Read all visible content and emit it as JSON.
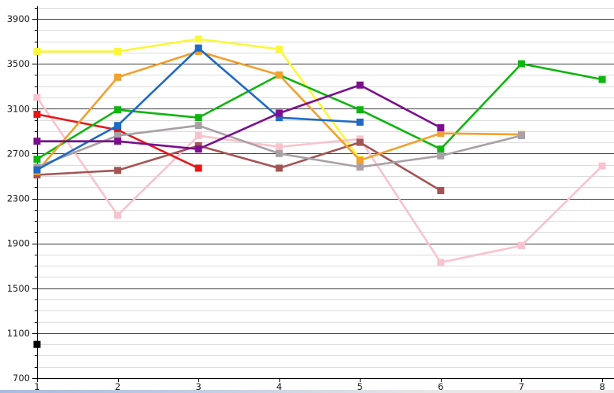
{
  "chart_data": {
    "type": "line",
    "title": "",
    "xlabel": "",
    "ylabel": "",
    "grid": true,
    "legend": "none",
    "xlim": [
      1,
      8
    ],
    "ylim": [
      700,
      4010
    ],
    "y_major_step": 400,
    "y_minor_step": 100,
    "x": [
      1,
      2,
      3,
      4,
      5,
      6,
      7,
      8
    ],
    "x_tick_labels": [
      "1",
      "2",
      "3",
      "4",
      "5",
      "6",
      "7",
      "8"
    ],
    "y_major_ticks": [
      700,
      1100,
      1500,
      1900,
      2300,
      2700,
      3100,
      3500,
      3900
    ],
    "y_tick_labels": [
      "700",
      "1100",
      "1500",
      "1900",
      "2300",
      "2700",
      "3100",
      "3500",
      "3900"
    ],
    "series": [
      {
        "name": "black",
        "color": "#000000",
        "values": [
          1000,
          null,
          null,
          null,
          null,
          null,
          null,
          null
        ]
      },
      {
        "name": "yellow",
        "color": "#fbf73a",
        "values": [
          3610,
          3610,
          3720,
          3630,
          2650,
          null,
          null,
          null
        ]
      },
      {
        "name": "pink",
        "color": "#f8c3ce",
        "values": [
          3200,
          2150,
          2860,
          2760,
          2830,
          1730,
          1880,
          2590
        ]
      },
      {
        "name": "brown",
        "color": "#a45454",
        "values": [
          2510,
          2550,
          2770,
          2570,
          2800,
          2370,
          null,
          null
        ]
      },
      {
        "name": "red",
        "color": "#e61717",
        "values": [
          3050,
          2910,
          2570,
          null,
          null,
          null,
          null,
          null
        ]
      },
      {
        "name": "green",
        "color": "#0fb50f",
        "values": [
          2650,
          3090,
          3020,
          3400,
          3090,
          2740,
          3500,
          3360
        ]
      },
      {
        "name": "orange",
        "color": "#f2a02e",
        "values": [
          2540,
          3380,
          3610,
          3400,
          2640,
          2880,
          2870,
          null
        ]
      },
      {
        "name": "gray",
        "color": "#a9a0a6",
        "values": [
          2580,
          2860,
          2950,
          2700,
          2580,
          2680,
          2860,
          null
        ]
      },
      {
        "name": "blue",
        "color": "#1f6ac4",
        "values": [
          2555,
          2950,
          3640,
          3020,
          2980,
          null,
          null,
          null
        ]
      },
      {
        "name": "purple",
        "color": "#7b0f8e",
        "values": [
          2810,
          2810,
          2740,
          3060,
          3310,
          2930,
          null,
          null
        ]
      }
    ]
  },
  "style": {
    "background": "#ffffff",
    "major_grid_color": "#3f3f3f",
    "minor_grid_color": "#dcdcdc",
    "axis_color": "#000000",
    "tick_label_color": "#1a1a1a"
  }
}
